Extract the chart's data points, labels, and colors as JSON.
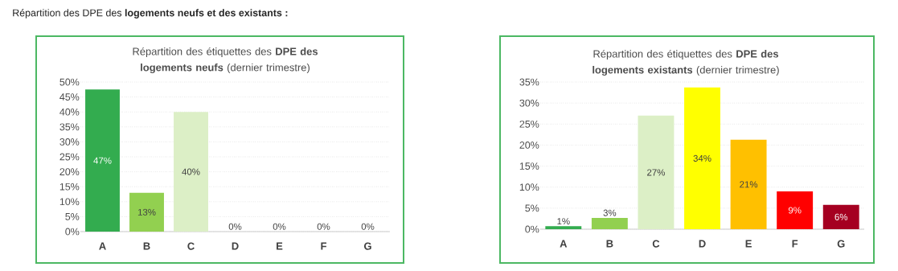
{
  "chart_data": [
    {
      "type": "bar",
      "title": "Répartition des étiquettes des **DPE des logements neufs** (dernier trimestre)",
      "annotations": [
        "Répartition des DPE des **logements neufs et des existants :**"
      ],
      "categories": [
        "A",
        "B",
        "C",
        "D",
        "E",
        "F",
        "G"
      ],
      "values": [
        47.5,
        13,
        40,
        0,
        0,
        0,
        0
      ],
      "value_labels": [
        "47%",
        "13%",
        "40%",
        "0%",
        "0%",
        "0%",
        "0%"
      ],
      "colors": [
        "#33ac4f",
        "#92d050",
        "#dcefc6",
        "#ffff00",
        "#ffc000",
        "#ff0000",
        "#a50021"
      ],
      "ylim": [
        0,
        50
      ],
      "yticks": [
        {
          "value": 0,
          "label": "0%"
        },
        {
          "value": 5,
          "label": "5%"
        },
        {
          "value": 10,
          "label": "10%"
        },
        {
          "value": 15,
          "label": "15%"
        },
        {
          "value": 20,
          "label": "20%"
        },
        {
          "value": 25,
          "label": "25%"
        },
        {
          "value": 30,
          "label": "30%"
        },
        {
          "value": 35,
          "label": "35%"
        },
        {
          "value": 40,
          "label": "40%"
        },
        {
          "value": 45,
          "label": "45%"
        },
        {
          "value": 50,
          "label": "50%"
        }
      ],
      "grid": "y"
    },
    {
      "type": "bar",
      "title": "Répartition des étiquettes des **DPE des logements existants** (dernier trimestre)",
      "categories": [
        "A",
        "B",
        "C",
        "D",
        "E",
        "F",
        "G"
      ],
      "values": [
        0.7,
        2.7,
        27,
        33.7,
        21.3,
        9,
        5.8
      ],
      "value_labels": [
        "1%",
        "3%",
        "27%",
        "34%",
        "21%",
        "9%",
        "6%"
      ],
      "colors": [
        "#33ac4f",
        "#92d050",
        "#dcefc6",
        "#ffff00",
        "#ffc000",
        "#ff0000",
        "#a50021"
      ],
      "ylim": [
        0,
        35
      ],
      "yticks": [
        {
          "value": 0,
          "label": "0%"
        },
        {
          "value": 5,
          "label": "5%"
        },
        {
          "value": 10,
          "label": "10%"
        },
        {
          "value": 15,
          "label": "15%"
        },
        {
          "value": 20,
          "label": "20%"
        },
        {
          "value": 25,
          "label": "25%"
        },
        {
          "value": 30,
          "label": "30%"
        },
        {
          "value": 35,
          "label": "35%"
        }
      ],
      "grid": "y"
    }
  ]
}
